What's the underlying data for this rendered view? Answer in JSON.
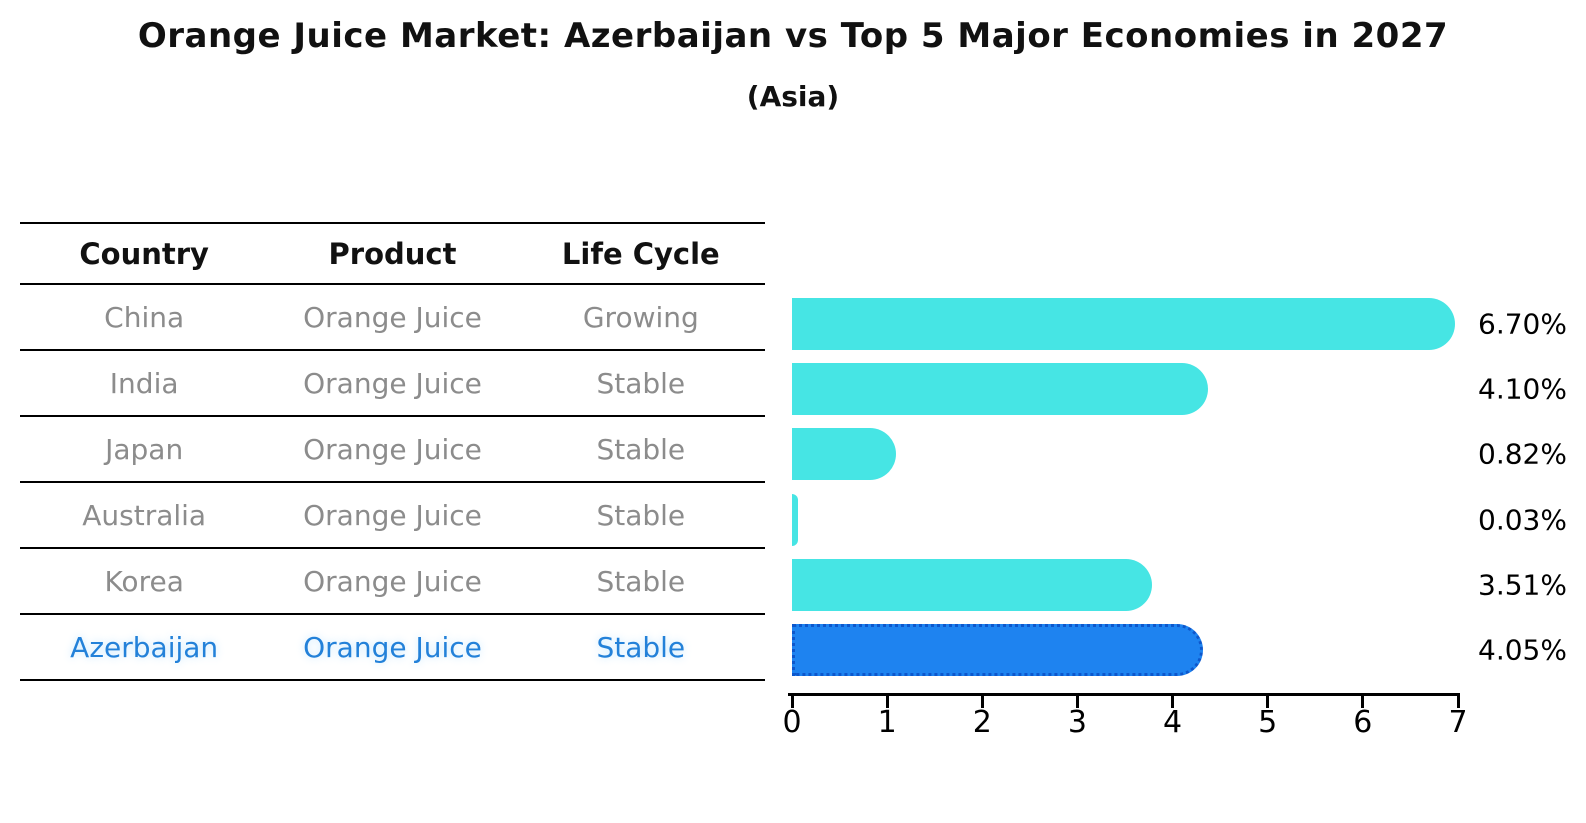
{
  "title": "Orange Juice Market: Azerbaijan vs Top 5 Major Economies in 2027",
  "subtitle": "(Asia)",
  "table": {
    "headers": [
      "Country",
      "Product",
      "Life Cycle"
    ],
    "rows": [
      {
        "country": "China",
        "product": "Orange Juice",
        "life_cycle": "Growing",
        "highlight": false
      },
      {
        "country": "India",
        "product": "Orange Juice",
        "life_cycle": "Stable",
        "highlight": false
      },
      {
        "country": "Japan",
        "product": "Orange Juice",
        "life_cycle": "Stable",
        "highlight": false
      },
      {
        "country": "Australia",
        "product": "Orange Juice",
        "life_cycle": "Stable",
        "highlight": false
      },
      {
        "country": "Korea",
        "product": "Orange Juice",
        "life_cycle": "Stable",
        "highlight": false
      },
      {
        "country": "Azerbaijan",
        "product": "Orange Juice",
        "life_cycle": "Stable",
        "highlight": true
      }
    ]
  },
  "chart_data": {
    "type": "bar",
    "orientation": "horizontal",
    "title": "Orange Juice Market: Azerbaijan vs Top 5 Major Economies in 2027",
    "subtitle": "(Asia)",
    "categories": [
      "China",
      "India",
      "Japan",
      "Australia",
      "Korea",
      "Azerbaijan"
    ],
    "values": [
      6.7,
      4.1,
      0.82,
      0.03,
      3.51,
      4.05
    ],
    "value_labels": [
      "6.70%",
      "4.10%",
      "0.82%",
      "0.03%",
      "3.51%",
      "4.05%"
    ],
    "x_ticks": [
      0,
      1,
      2,
      3,
      4,
      5,
      6,
      7
    ],
    "xlim": [
      0,
      7
    ],
    "grid": false,
    "legend": "none",
    "highlight_index": 5,
    "colors": {
      "bar_default": "#46e5e4",
      "bar_highlight": "#1e83f0",
      "bar_highlight_border": "#0d57cc",
      "highlight_text": "#2381d9",
      "row_text": "#8c8c8c",
      "axis": "#000000"
    }
  }
}
